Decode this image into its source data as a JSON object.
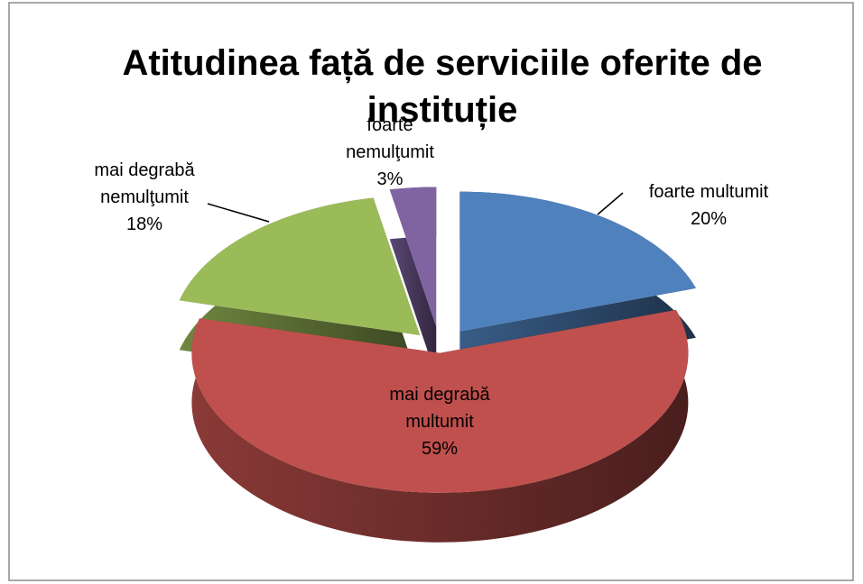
{
  "chart_data": {
    "type": "pie",
    "title": "Atitudinea față de serviciile oferite de instituție",
    "categories": [
      "foarte multumit",
      "mai degrabă multumit",
      "mai degrabă nemulţumit",
      "foarte nemulţumit"
    ],
    "values": [
      20,
      59,
      18,
      3
    ],
    "value_labels": [
      "20%",
      "59%",
      "18%",
      "3%"
    ],
    "colors": [
      "#4f81bd",
      "#c0504d",
      "#9bbb59",
      "#8064a2"
    ]
  }
}
